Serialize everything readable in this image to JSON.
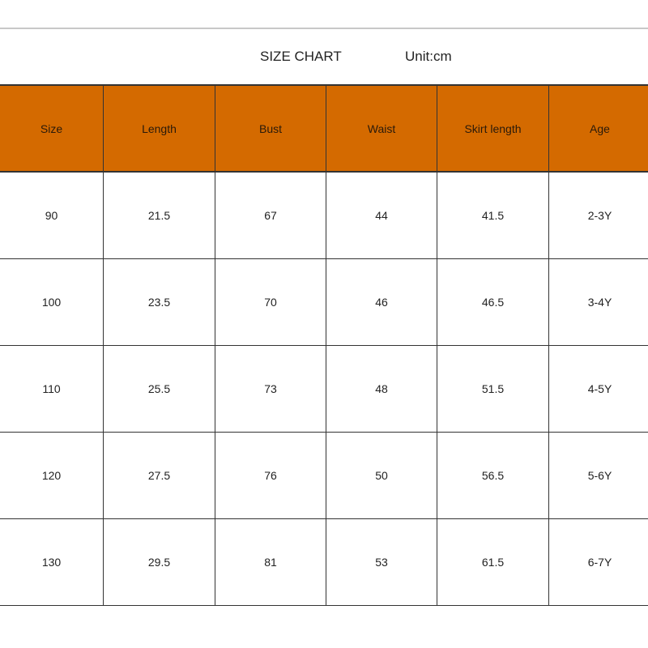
{
  "title": "SIZE CHART",
  "unit": "Unit:cm",
  "header_color": "#D46A00",
  "columns": [
    "Size",
    "Length",
    "Bust",
    "Waist",
    "Skirt length",
    "Age"
  ],
  "rows": [
    [
      "90",
      "21.5",
      "67",
      "44",
      "41.5",
      "2-3Y"
    ],
    [
      "100",
      "23.5",
      "70",
      "46",
      "46.5",
      "3-4Y"
    ],
    [
      "110",
      "25.5",
      "73",
      "48",
      "51.5",
      "4-5Y"
    ],
    [
      "120",
      "27.5",
      "76",
      "50",
      "56.5",
      "5-6Y"
    ],
    [
      "130",
      "29.5",
      "81",
      "53",
      "61.5",
      "6-7Y"
    ]
  ]
}
